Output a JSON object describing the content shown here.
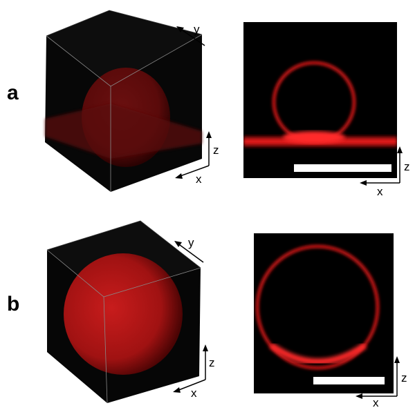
{
  "panels": [
    {
      "label": "a",
      "cube_axes": {
        "x": "x",
        "y": "y",
        "z": "z"
      },
      "section_axes": {
        "x": "x",
        "z": "z"
      }
    },
    {
      "label": "b",
      "cube_axes": {
        "x": "x",
        "y": "y",
        "z": "z"
      },
      "section_axes": {
        "x": "x",
        "z": "z"
      }
    }
  ],
  "colors": {
    "fluorescence": "#e0141a",
    "background": "#000000",
    "scale_bar": "#ffffff"
  }
}
